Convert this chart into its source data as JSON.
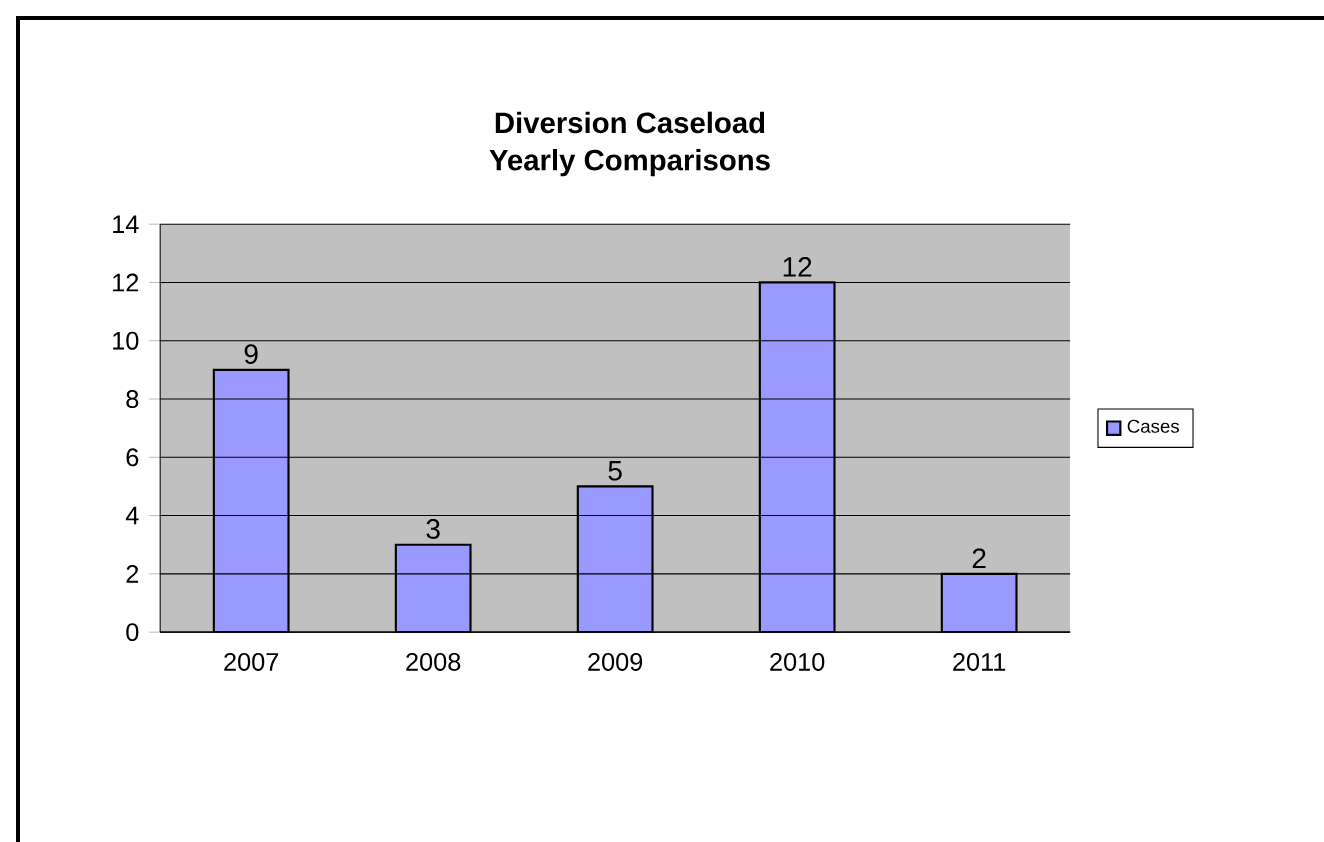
{
  "chart_data": {
    "type": "bar",
    "title": "Diversion Caseload",
    "subtitle": "Yearly Comparisons",
    "categories": [
      "2007",
      "2008",
      "2009",
      "2010",
      "2011"
    ],
    "series": [
      {
        "name": "Cases",
        "color": "#9999ff",
        "values": [
          9,
          3,
          5,
          12,
          2
        ]
      }
    ],
    "ylim": [
      0,
      14
    ],
    "yticks": [
      0,
      2,
      4,
      6,
      8,
      10,
      12,
      14
    ],
    "grid": "y",
    "legend": "right",
    "data_labels": true
  }
}
